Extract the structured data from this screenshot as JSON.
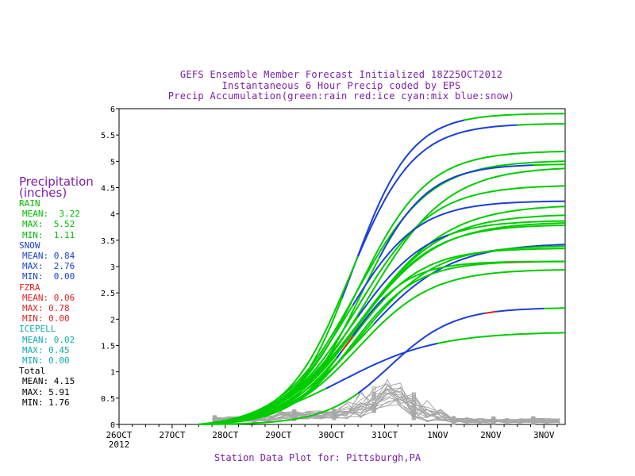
{
  "titles": {
    "line1": "GEFS Ensemble Member Forecast Initialized 18Z25OCT2012",
    "line2": "Instantaneous 6 Hour Precip coded by EPS",
    "line3": "Precip Accumulation(green:rain red:ice cyan:mix blue:snow)"
  },
  "footer": "Station Data Plot for: Pittsburgh,PA",
  "legend": {
    "title1": "Precipitation",
    "title2": "(inches)",
    "rain": {
      "label": "RAIN",
      "mean": "MEAN:  3.22",
      "max": "MAX:  5.52",
      "min": "MIN:  1.11",
      "color": "#00bb00"
    },
    "snow": {
      "label": "SNOW",
      "mean": "MEAN: 0.84",
      "max": "MAX:  2.76",
      "min": "MIN:  0.00",
      "color": "#1a3fd8"
    },
    "fzra": {
      "label": "FZRA",
      "mean": "MEAN: 0.06",
      "max": "MAX: 0.78",
      "min": "MIN: 0.00",
      "color": "#dd2222"
    },
    "icepell": {
      "label": "ICEPELL",
      "mean": "MEAN: 0.02",
      "max": "MAX: 0.45",
      "min": "MIN: 0.00",
      "color": "#11aaaa"
    },
    "total": {
      "label": "Total",
      "mean": "MEAN: 4.15",
      "max": "MAX: 5.91",
      "min": "MIN: 1.76",
      "color": "#000000"
    }
  },
  "chart_data": {
    "type": "line",
    "x_axis": {
      "range_days": [
        0,
        8.4
      ],
      "ticks": [
        "26OCT",
        "27OCT",
        "28OCT",
        "29OCT",
        "30OCT",
        "31OCT",
        "1NOV",
        "2NOV",
        "3NOV"
      ],
      "year_label": "2012"
    },
    "y_axis": {
      "range": [
        0,
        6
      ],
      "ticks": [
        "0",
        "0.5",
        "1",
        "1.5",
        "2",
        "2.5",
        "3",
        "3.5",
        "4",
        "4.5",
        "5",
        "5.5",
        "6"
      ]
    },
    "colors": {
      "rain": "#00cc00",
      "snow": "#1a3fd8",
      "ice": "#dd2222",
      "instant": "#a8a8a8"
    },
    "accumulation_members": [
      {
        "final": 5.91,
        "mid": 4.4,
        "steep": 0.55,
        "snow": [
          [
            4.3,
            6.5
          ]
        ]
      },
      {
        "final": 5.72,
        "mid": 4.35,
        "steep": 0.6,
        "snow": [
          [
            4.6,
            7.5
          ]
        ]
      },
      {
        "final": 5.2,
        "mid": 4.5,
        "steep": 0.65,
        "snow": []
      },
      {
        "final": 5.02,
        "mid": 4.45,
        "steep": 0.7,
        "snow": []
      },
      {
        "final": 4.95,
        "mid": 4.55,
        "steep": 0.6,
        "snow": [
          [
            4.9,
            7.8
          ]
        ]
      },
      {
        "final": 4.9,
        "mid": 4.7,
        "steep": 0.75,
        "snow": []
      },
      {
        "final": 4.55,
        "mid": 4.5,
        "steep": 0.7,
        "snow": []
      },
      {
        "final": 4.25,
        "mid": 4.3,
        "steep": 0.65,
        "snow": [
          [
            4.5,
            8.4
          ]
        ]
      },
      {
        "final": 4.18,
        "mid": 4.6,
        "steep": 0.8,
        "snow": []
      },
      {
        "final": 4.0,
        "mid": 4.55,
        "steep": 0.75,
        "snow": []
      },
      {
        "final": 3.88,
        "mid": 4.4,
        "steep": 0.7,
        "snow": [
          [
            4.6,
            6.2
          ]
        ]
      },
      {
        "final": 3.85,
        "mid": 4.5,
        "steep": 0.75,
        "snow": []
      },
      {
        "final": 3.8,
        "mid": 4.5,
        "steep": 0.7,
        "snow": []
      },
      {
        "final": 3.45,
        "mid": 4.6,
        "steep": 0.8,
        "snow": [
          [
            4.8,
            8.4
          ]
        ]
      },
      {
        "final": 3.4,
        "mid": 4.55,
        "steep": 0.7,
        "snow": []
      },
      {
        "final": 3.35,
        "mid": 4.4,
        "steep": 0.65,
        "snow": []
      },
      {
        "final": 3.1,
        "mid": 4.4,
        "steep": 0.6,
        "snow": [],
        "ice": [
          [
            7.3,
            7.8
          ]
        ]
      },
      {
        "final": 3.1,
        "mid": 4.3,
        "steep": 0.55,
        "snow": [
          [
            4.2,
            5.0
          ]
        ],
        "ice": [
          [
            4.25,
            4.45
          ]
        ]
      },
      {
        "final": 2.95,
        "mid": 4.5,
        "steep": 0.7,
        "snow": []
      },
      {
        "final": 2.22,
        "mid": 5.1,
        "steep": 0.6,
        "snow": [
          [
            4.6,
            8.0
          ]
        ],
        "ice": [
          [
            6.9,
            7.1
          ]
        ]
      },
      {
        "final": 1.76,
        "mid": 4.2,
        "steep": 0.9,
        "snow": [
          [
            4.0,
            6.0
          ]
        ]
      }
    ],
    "instantaneous_note": "gray traces of 6-hour precip per member, mostly below 0.6 in with peaks near 31OCT"
  }
}
